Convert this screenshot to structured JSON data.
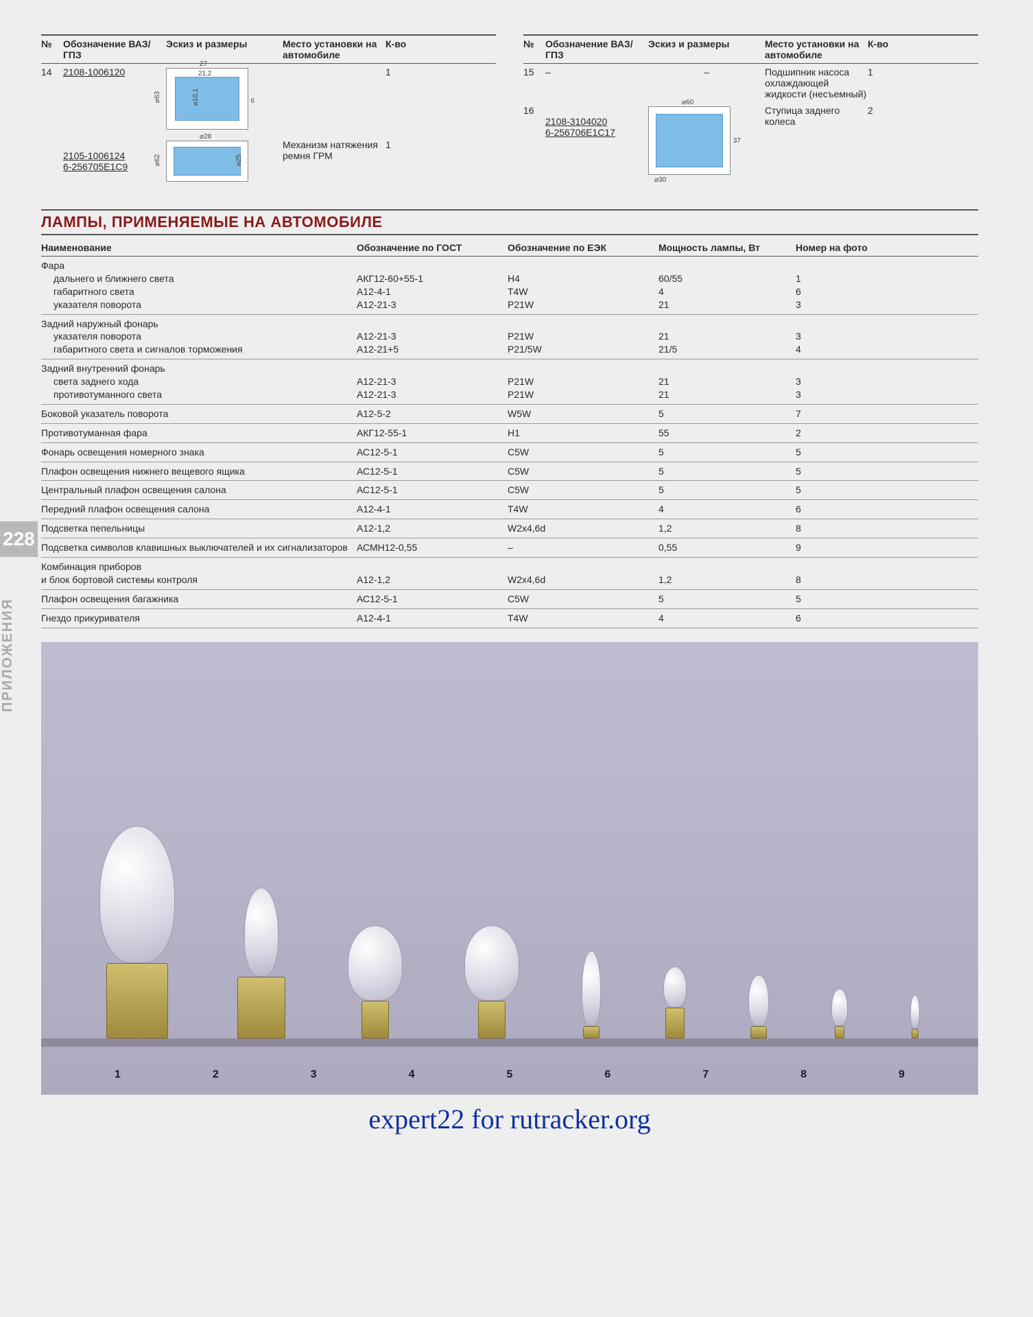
{
  "page_number": "228",
  "side_label": "ПРИЛОЖЕНИЯ",
  "footer": "expert22 for rutracker.org",
  "bearings": {
    "headers": {
      "no": "№",
      "designation": "Обозначение ВАЗ/ГПЗ",
      "sketch": "Эскиз и размеры",
      "place": "Место установки на автомобиле",
      "qty": "К-во"
    },
    "left": [
      {
        "no": "14",
        "designation": "2108-1006120",
        "designation2": "2105-1006124\n6-256705Е1С9",
        "place": "Механизм натяжения ремня ГРМ",
        "qty1": "1",
        "qty2": "1",
        "dims1": {
          "w": "27",
          "w2": "21,2",
          "d_out": "⌀63",
          "d_in": "⌀10,1",
          "t": "6"
        },
        "dims2": {
          "w": "⌀28",
          "d_out": "⌀62",
          "d_in": "⌀25"
        }
      }
    ],
    "right": [
      {
        "no": "15",
        "designation": "–",
        "sketch": "–",
        "place": "Подшипник насоса охлаждающей жидкости (несъемный)",
        "qty": "1"
      },
      {
        "no": "16",
        "designation": "2108-3104020\n6-256706Е1С17",
        "place": "Ступица заднего колеса",
        "qty": "2",
        "dims": {
          "d_out": "⌀60",
          "h": "37",
          "d_in": "⌀30"
        }
      }
    ]
  },
  "section_title": "ЛАМПЫ, ПРИМЕНЯЕМЫЕ НА АВТОМОБИЛЕ",
  "lamps": {
    "headers": {
      "name": "Наименование",
      "gost": "Обозначение по ГОСТ",
      "eek": "Обозначение по ЕЭК",
      "power": "Мощность лампы, Вт",
      "photo": "Номер на фото"
    },
    "groups": [
      {
        "title": "Фара",
        "rows": [
          {
            "name": "дальнего и ближнего света",
            "gost": "АКГ12-60+55-1",
            "eek": "H4",
            "power": "60/55",
            "photo": "1"
          },
          {
            "name": "габаритного света",
            "gost": "А12-4-1",
            "eek": "T4W",
            "power": "4",
            "photo": "6"
          },
          {
            "name": "указателя поворота",
            "gost": "А12-21-3",
            "eek": "P21W",
            "power": "21",
            "photo": "3"
          }
        ]
      },
      {
        "title": "Задний наружный фонарь",
        "rows": [
          {
            "name": "указателя поворота",
            "gost": "А12-21-3",
            "eek": "P21W",
            "power": "21",
            "photo": "3"
          },
          {
            "name": "габаритного света и сигналов торможения",
            "gost": "А12-21+5",
            "eek": "P21/5W",
            "power": "21/5",
            "photo": "4"
          }
        ]
      },
      {
        "title": "Задний внутренний фонарь",
        "rows": [
          {
            "name": "света заднего хода",
            "gost": "А12-21-3",
            "eek": "P21W",
            "power": "21",
            "photo": "3"
          },
          {
            "name": "противотуманного света",
            "gost": "А12-21-3",
            "eek": "P21W",
            "power": "21",
            "photo": "3"
          }
        ]
      },
      {
        "rows": [
          {
            "name": "Боковой указатель поворота",
            "gost": "А12-5-2",
            "eek": "W5W",
            "power": "5",
            "photo": "7"
          }
        ]
      },
      {
        "rows": [
          {
            "name": "Противотуманная фара",
            "gost": "АКГ12-55-1",
            "eek": "H1",
            "power": "55",
            "photo": "2"
          }
        ]
      },
      {
        "rows": [
          {
            "name": "Фонарь освещения номерного знака",
            "gost": "АС12-5-1",
            "eek": "C5W",
            "power": "5",
            "photo": "5"
          }
        ]
      },
      {
        "rows": [
          {
            "name": "Плафон освещения нижнего вещевого ящика",
            "gost": "АС12-5-1",
            "eek": "C5W",
            "power": "5",
            "photo": "5"
          }
        ]
      },
      {
        "rows": [
          {
            "name": "Центральный плафон освещения салона",
            "gost": "АС12-5-1",
            "eek": "C5W",
            "power": "5",
            "photo": "5"
          }
        ]
      },
      {
        "rows": [
          {
            "name": "Передний плафон освещения салона",
            "gost": "А12-4-1",
            "eek": "T4W",
            "power": "4",
            "photo": "6"
          }
        ]
      },
      {
        "rows": [
          {
            "name": "Подсветка пепельницы",
            "gost": "А12-1,2",
            "eek": "W2x4,6d",
            "power": "1,2",
            "photo": "8"
          }
        ]
      },
      {
        "rows": [
          {
            "name": "Подсветка символов клавишных выключателей и их сигнализаторов",
            "gost": "АСМН12-0,55",
            "eek": "–",
            "power": "0,55",
            "photo": "9"
          }
        ]
      },
      {
        "title": "Комбинация приборов",
        "rows": [
          {
            "name": "и блок бортовой системы контроля",
            "gost": "А12-1,2",
            "eek": "W2x4,6d",
            "power": "1,2",
            "photo": "8"
          }
        ],
        "title_noindent_rows": true
      },
      {
        "rows": [
          {
            "name": "Плафон освещения багажника",
            "gost": "АС12-5-1",
            "eek": "C5W",
            "power": "5",
            "photo": "5"
          }
        ]
      },
      {
        "rows": [
          {
            "name": "Гнездо прикуривателя",
            "gost": "А12-4-1",
            "eek": "T4W",
            "power": "4",
            "photo": "6"
          }
        ]
      }
    ]
  },
  "bulbs_photo": {
    "labels": [
      "1",
      "2",
      "3",
      "4",
      "5",
      "6",
      "7",
      "8",
      "9"
    ],
    "sizes": [
      {
        "gw": 110,
        "gh": 200,
        "bw": 90,
        "bh": 110
      },
      {
        "gw": 50,
        "gh": 130,
        "bw": 70,
        "bh": 90
      },
      {
        "gw": 80,
        "gh": 110,
        "bw": 40,
        "bh": 55
      },
      {
        "gw": 80,
        "gh": 110,
        "bw": 40,
        "bh": 55
      },
      {
        "gw": 28,
        "gh": 110,
        "bw": 24,
        "bh": 18
      },
      {
        "gw": 34,
        "gh": 60,
        "bw": 28,
        "bh": 45
      },
      {
        "gw": 30,
        "gh": 75,
        "bw": 24,
        "bh": 18
      },
      {
        "gw": 24,
        "gh": 55,
        "bw": 14,
        "bh": 18
      },
      {
        "gw": 14,
        "gh": 50,
        "bw": 10,
        "bh": 14
      }
    ]
  },
  "colors": {
    "page_bg": "#eeeeee",
    "title_red": "#8a1a1a",
    "bearing_blue": "#7fbde6",
    "photo_bg_top": "#bdbcd0",
    "footer_blue": "#1030a0"
  }
}
